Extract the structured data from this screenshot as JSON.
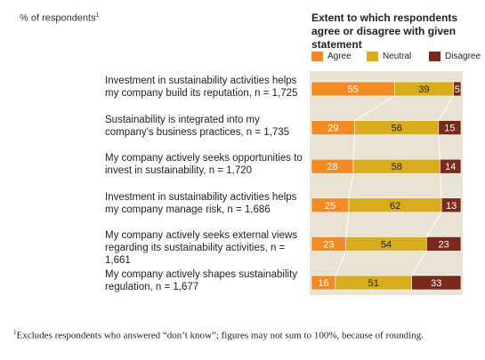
{
  "header": {
    "unit_label": "% of respondents",
    "unit_marker": "1",
    "title": "Extent to which respondents agree or disagree with given statement"
  },
  "legend": [
    {
      "label": "Agree",
      "color": "#f38b25"
    },
    {
      "label": "Neutral",
      "color": "#d7ac1e"
    },
    {
      "label": "Disagree",
      "color": "#7a2a1a"
    }
  ],
  "colors": {
    "background": "#e8e3d2",
    "connector": "#ffffff"
  },
  "chart_data": {
    "type": "bar",
    "stacked": true,
    "orientation": "horizontal",
    "categories": [
      "Investment in sustainability activities helps my company build its reputation, n = 1,725",
      "Sustainability is integrated into my company's business practices, n = 1,735",
      "My company actively seeks opportunities to invest in sustainability, n = 1,720",
      "Investment in sustainability activities helps my company manage risk, n = 1,686",
      "My company actively seeks external views regarding its sustainability activities, n = 1,661",
      "My company actively shapes sustainability regulation, n = 1,677"
    ],
    "series": [
      {
        "name": "Agree",
        "values": [
          55,
          29,
          28,
          25,
          23,
          16
        ]
      },
      {
        "name": "Neutral",
        "values": [
          39,
          56,
          58,
          62,
          54,
          51
        ]
      },
      {
        "name": "Disagree",
        "values": [
          5,
          15,
          14,
          13,
          23,
          33
        ]
      }
    ]
  },
  "footnote": {
    "marker": "1",
    "text": "Excludes respondents who answered “don’t know”; figures may not sum to 100%, because of rounding."
  }
}
